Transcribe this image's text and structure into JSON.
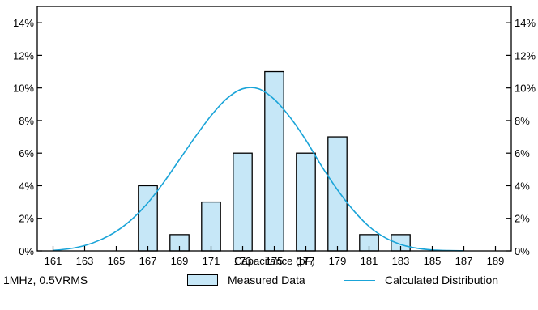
{
  "chart_data": {
    "type": "bar",
    "xlabel": "Capacitance (pF)",
    "ylabel": "",
    "x_ticks": [
      161,
      163,
      165,
      167,
      169,
      171,
      173,
      175,
      177,
      179,
      181,
      183,
      185,
      187,
      189
    ],
    "x_range": [
      160,
      190
    ],
    "ylim": [
      0,
      15
    ],
    "y_ticks": [
      "0%",
      "2%",
      "4%",
      "6%",
      "8%",
      "10%",
      "12%",
      "14%"
    ],
    "y_tick_values": [
      0,
      2,
      4,
      6,
      8,
      10,
      12,
      14
    ],
    "grid": false,
    "series": [
      {
        "name": "Measured Data",
        "kind": "bar",
        "categories": [
          167,
          169,
          171,
          173,
          175,
          177,
          179,
          181,
          183
        ],
        "values": [
          4,
          1,
          3,
          6,
          11,
          6,
          7,
          1,
          1
        ]
      },
      {
        "name": "Calculated Distribution",
        "kind": "line",
        "x": [
          161,
          162,
          163,
          164,
          165,
          166,
          167,
          168,
          169,
          170,
          171,
          172,
          173,
          174,
          175,
          176,
          177,
          178,
          179,
          180,
          181,
          182,
          183,
          184,
          185,
          186,
          187
        ],
        "values": [
          0.03,
          0.13,
          0.33,
          0.68,
          1.2,
          1.95,
          2.95,
          4.2,
          5.6,
          7.0,
          8.3,
          9.35,
          9.95,
          9.95,
          9.3,
          8.2,
          6.8,
          5.2,
          3.75,
          2.5,
          1.5,
          0.82,
          0.4,
          0.17,
          0.06,
          0.02,
          0.01
        ]
      }
    ],
    "annotation": "1MHz, 0.5VRMS",
    "legend_position": "bottom"
  },
  "colors": {
    "bar_fill": "#c6e7f7",
    "bar_stroke": "#000000",
    "line": "#1aa4d8"
  }
}
